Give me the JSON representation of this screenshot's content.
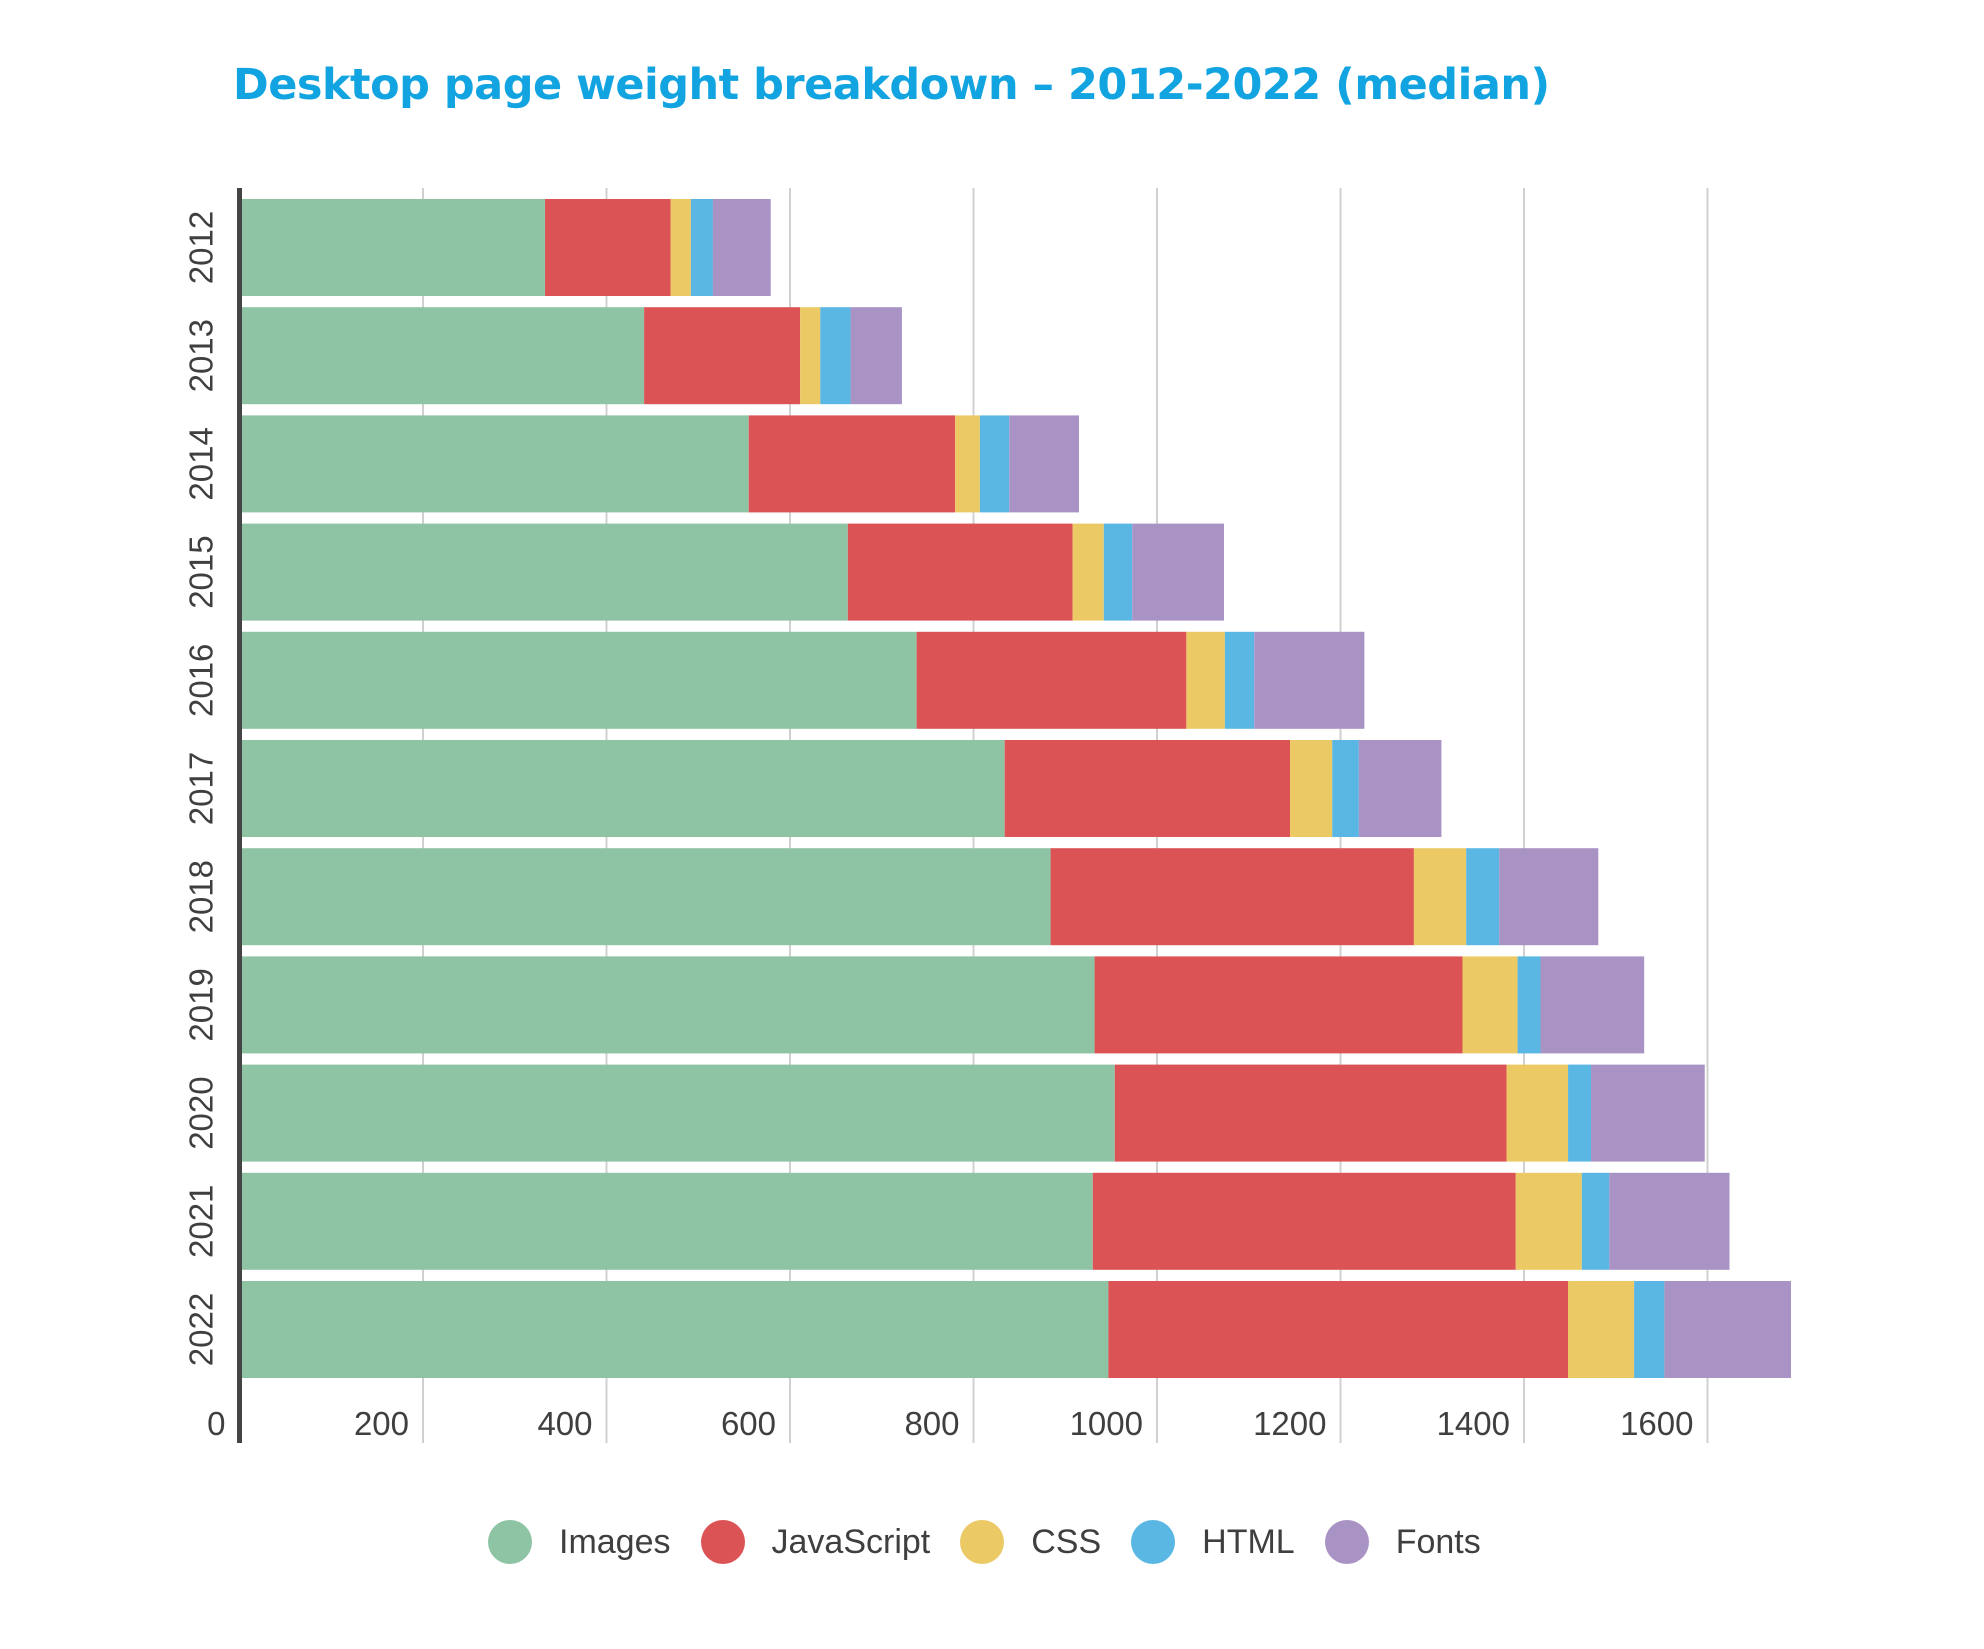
{
  "chart_data": {
    "type": "bar",
    "orientation": "horizontal",
    "stacked": true,
    "title": "Desktop page weight breakdown – 2012-2022 (median)",
    "xlabel": "",
    "ylabel": "",
    "xlim": [
      0,
      1700
    ],
    "xticks": [
      0,
      200,
      400,
      600,
      800,
      1000,
      1200,
      1400,
      1600
    ],
    "xtick_labels": [
      "0",
      "200",
      "400",
      "600",
      "800",
      "1000",
      "1200",
      "1400",
      "1600"
    ],
    "grid": true,
    "legend_position": "bottom-center",
    "categories": [
      "2012",
      "2013",
      "2014",
      "2015",
      "2016",
      "2017",
      "2018",
      "2019",
      "2020",
      "2021",
      "2022"
    ],
    "series": [
      {
        "name": "Images",
        "color": "#8ec3a4",
        "values": [
          333,
          441,
          555,
          663,
          738,
          834,
          884,
          932,
          954,
          930,
          947
        ]
      },
      {
        "name": "JavaScript",
        "color": "#db5355",
        "values": [
          137,
          170,
          225,
          245,
          294,
          311,
          396,
          401,
          427,
          461,
          501
        ]
      },
      {
        "name": "CSS",
        "color": "#ebca65",
        "values": [
          22,
          22,
          27,
          34,
          42,
          46,
          57,
          60,
          67,
          72,
          72
        ]
      },
      {
        "name": "HTML",
        "color": "#5ab7e3",
        "values": [
          24,
          33,
          32,
          31,
          32,
          29,
          36,
          25,
          25,
          30,
          33
        ]
      },
      {
        "name": "Fonts",
        "color": "#a993c4",
        "values": [
          63,
          56,
          76,
          100,
          120,
          90,
          108,
          113,
          124,
          131,
          138
        ]
      }
    ]
  },
  "colors": {
    "title": "#12a4e0",
    "axis": "#444444",
    "grid": "#d0d0d0",
    "text": "#3f3f3f"
  }
}
